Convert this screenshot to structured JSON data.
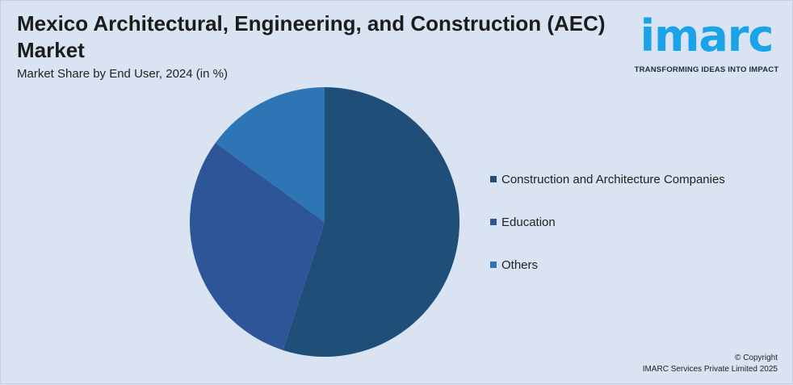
{
  "header": {
    "title": "Mexico Architectural, Engineering, and Construction (AEC) Market",
    "subtitle": "Market Share by End User, 2024 (in %)"
  },
  "logo": {
    "word": "imarc",
    "tagline": "TRANSFORMING IDEAS INTO IMPACT",
    "color": "#1aa3e8"
  },
  "chart_data": {
    "type": "pie",
    "title": "Mexico Architectural, Engineering, and Construction (AEC) Market",
    "subtitle": "Market Share by End User, 2024 (in %)",
    "categories": [
      "Construction and Architecture Companies",
      "Education",
      "Others"
    ],
    "values": [
      55,
      30,
      15
    ],
    "colors": [
      "#1f4e79",
      "#2e5597",
      "#2e75b6"
    ],
    "start_angle_deg": 0,
    "direction": "clockwise",
    "legend_position": "right"
  },
  "footer": {
    "copyright_line1": "© Copyright",
    "copyright_line2": "IMARC Services Private Limited 2025"
  }
}
